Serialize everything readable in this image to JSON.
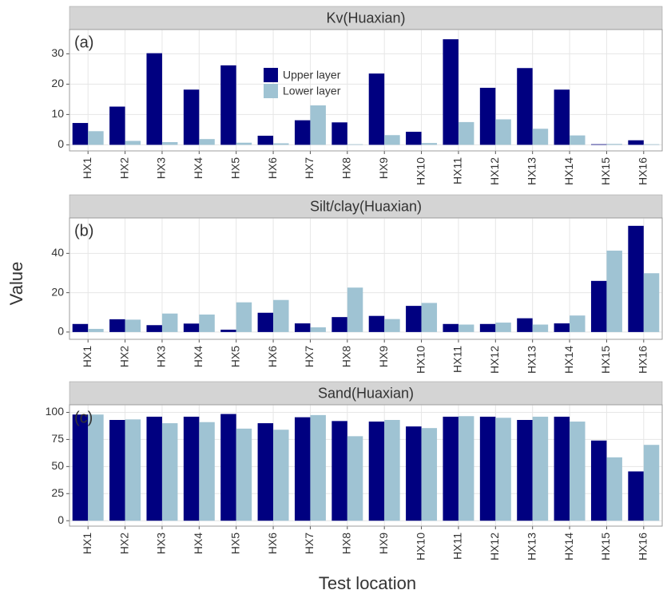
{
  "x_label": "Test location",
  "y_label": "Value",
  "chart_data": [
    {
      "type": "bar",
      "title": "Kv(Huaxian)",
      "annotation": "(a)",
      "categories": [
        "HX1",
        "HX2",
        "HX3",
        "HX4",
        "HX5",
        "HX6",
        "HX7",
        "HX8",
        "HX9",
        "HX10",
        "HX11",
        "HX12",
        "HX13",
        "HX14",
        "HX15",
        "HX16"
      ],
      "series": [
        {
          "name": "Upper layer",
          "color": "#000080",
          "values": [
            7.2,
            12.6,
            30.2,
            18.2,
            26.2,
            3.0,
            8.1,
            7.4,
            23.5,
            4.3,
            34.8,
            18.8,
            25.3,
            18.2,
            0.2,
            1.5
          ]
        },
        {
          "name": "Lower layer",
          "color": "#9fc3d3",
          "values": [
            4.5,
            1.3,
            0.9,
            1.9,
            0.7,
            0.5,
            13.0,
            0.2,
            3.2,
            0.6,
            7.5,
            8.4,
            5.3,
            3.1,
            0.3,
            0.2
          ]
        }
      ],
      "ylim": [
        -2,
        38
      ],
      "yticks": [
        0,
        10,
        20,
        30
      ],
      "grid": true,
      "legend": "top-center"
    },
    {
      "type": "bar",
      "title": "Silt/clay(Huaxian)",
      "annotation": "(b)",
      "categories": [
        "HX1",
        "HX2",
        "HX3",
        "HX4",
        "HX5",
        "HX6",
        "HX7",
        "HX8",
        "HX9",
        "HX10",
        "HX11",
        "HX12",
        "HX13",
        "HX14",
        "HX15",
        "HX16"
      ],
      "series": [
        {
          "color": "#000080",
          "values": [
            4.1,
            6.5,
            3.5,
            4.3,
            1.2,
            9.8,
            4.4,
            7.6,
            8.2,
            13.3,
            4.1,
            4.1,
            7.0,
            4.4,
            26,
            54
          ]
        },
        {
          "color": "#9fc3d3",
          "values": [
            1.6,
            6.3,
            9.4,
            8.9,
            15.1,
            16.3,
            2.4,
            22.6,
            6.6,
            14.8,
            3.8,
            4.8,
            3.8,
            8.4,
            41.4,
            29.9
          ]
        }
      ],
      "ylim": [
        -3.7,
        58
      ],
      "yticks": [
        0,
        20,
        40
      ],
      "grid": true
    },
    {
      "type": "bar",
      "title": "Sand(Huaxian)",
      "annotation": "(c)",
      "categories": [
        "HX1",
        "HX2",
        "HX3",
        "HX4",
        "HX5",
        "HX6",
        "HX7",
        "HX8",
        "HX9",
        "HX10",
        "HX11",
        "HX12",
        "HX13",
        "HX14",
        "HX15",
        "HX16"
      ],
      "series": [
        {
          "color": "#000080",
          "values": [
            98,
            93,
            96,
            96,
            98.5,
            90,
            95.5,
            92,
            91.5,
            87,
            96,
            96,
            93,
            96,
            74,
            45.5
          ]
        },
        {
          "color": "#9fc3d3",
          "values": [
            98,
            93.5,
            90,
            91,
            85,
            84,
            97.5,
            78,
            93,
            85.5,
            96.5,
            95,
            96,
            91.5,
            58.5,
            70
          ]
        }
      ],
      "ylim": [
        -5,
        107
      ],
      "yticks": [
        0,
        25,
        50,
        75,
        100
      ],
      "grid": true
    }
  ]
}
